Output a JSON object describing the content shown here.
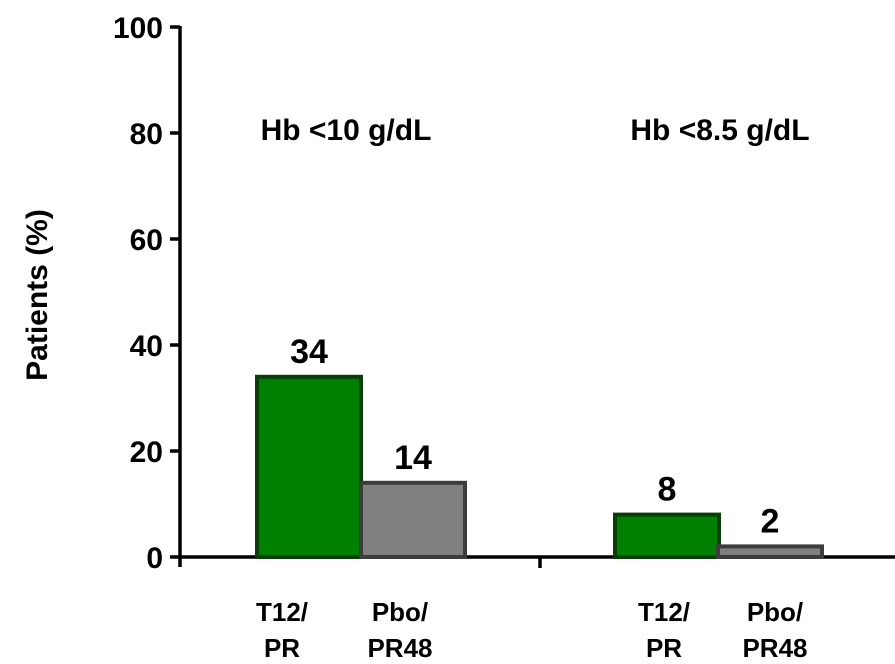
{
  "chart_data": {
    "type": "bar",
    "ylabel": "Patients (%)",
    "ylim": [
      0,
      100
    ],
    "yticks": [
      "0",
      "20",
      "40",
      "60",
      "80",
      "100"
    ],
    "grid": false,
    "legend": "none",
    "groups": [
      {
        "label": "Hb <10 g/dL",
        "bars": [
          {
            "category": [
              "T12/",
              "PR"
            ],
            "value": 34,
            "value_label": "34",
            "color": "#008000"
          },
          {
            "category": [
              "Pbo/",
              "PR48"
            ],
            "value": 14,
            "value_label": "14",
            "color": "#808080"
          }
        ]
      },
      {
        "label": "Hb <8.5 g/dL",
        "bars": [
          {
            "category": [
              "T12/",
              "PR"
            ],
            "value": 8,
            "value_label": "8",
            "color": "#008000"
          },
          {
            "category": [
              "Pbo/",
              "PR48"
            ],
            "value": 2,
            "value_label": "2",
            "color": "#808080"
          }
        ]
      }
    ],
    "colors": {
      "treatment": "#008000",
      "treatment_border": "#0b3d0b",
      "placebo": "#808080",
      "placebo_border": "#3c3c3c",
      "axis": "#000000"
    }
  }
}
